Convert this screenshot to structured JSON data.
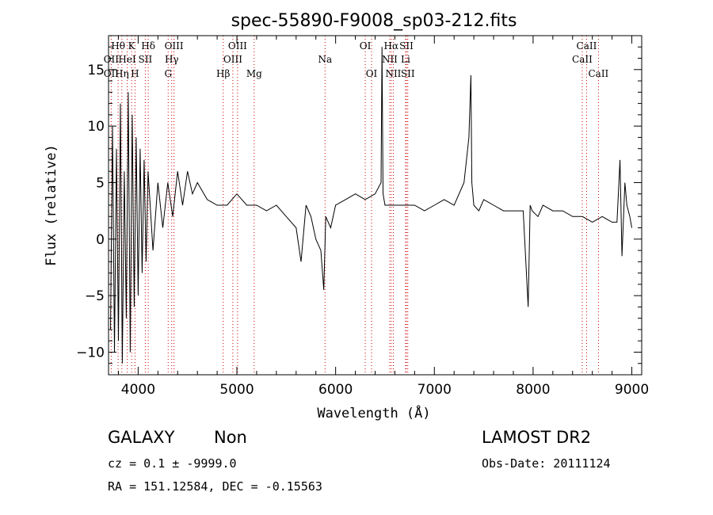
{
  "chart_data": {
    "type": "line",
    "title": "spec-55890-F9008_sp03-212.fits",
    "xlabel": "Wavelength (Å)",
    "ylabel": "Flux (relative)",
    "xlim": [
      3700,
      9100
    ],
    "ylim": [
      -12,
      18
    ],
    "xticks": [
      4000,
      5000,
      6000,
      7000,
      8000,
      9000
    ],
    "yticks": [
      -10,
      -5,
      0,
      5,
      10,
      15
    ],
    "grid": false,
    "colors": {
      "spectrum": "#000000",
      "line_marker": "#cc0000",
      "axes": "#000000"
    },
    "series": [
      {
        "x": [
          3720,
          3740,
          3760,
          3780,
          3800,
          3820,
          3840,
          3860,
          3880,
          3900,
          3920,
          3940,
          3960,
          3980,
          4000,
          4020,
          4040,
          4060,
          4080,
          4100,
          4150,
          4200,
          4250,
          4300,
          4350,
          4400,
          4450,
          4500,
          4550,
          4600,
          4700,
          4800,
          4900,
          5000,
          5100,
          5200,
          5300,
          5400,
          5500,
          5600,
          5650,
          5700,
          5750,
          5800,
          5850,
          5880,
          5900,
          5950,
          6000,
          6100,
          6200,
          6300,
          6400,
          6460,
          6470,
          6480,
          6500,
          6600,
          6700,
          6800,
          6900,
          7000,
          7100,
          7200,
          7300,
          7350,
          7370,
          7380,
          7400,
          7450,
          7500,
          7600,
          7700,
          7800,
          7900,
          7950,
          7970,
          7990,
          8050,
          8100,
          8200,
          8300,
          8400,
          8500,
          8600,
          8700,
          8800,
          8850,
          8880,
          8900,
          8930,
          8950,
          8980,
          9000
        ],
        "y": [
          -8,
          10,
          -10,
          8,
          -9,
          12,
          -11,
          6,
          -7,
          13,
          -10,
          11,
          -6,
          9,
          -5,
          8,
          -3,
          7,
          -2,
          6,
          -1,
          5,
          1,
          5,
          2,
          6,
          3,
          6,
          4,
          5,
          3.5,
          3,
          3,
          4,
          3,
          3,
          2.5,
          3,
          2,
          1,
          -2,
          3,
          2,
          0,
          -1,
          -4.5,
          2,
          1,
          3,
          3.5,
          4,
          3.5,
          4,
          5,
          17,
          4,
          3,
          3,
          3,
          3,
          2.5,
          3,
          3.5,
          3,
          5,
          9,
          14.5,
          5,
          3,
          2.5,
          3.5,
          3,
          2.5,
          2.5,
          2.5,
          -6,
          3,
          2.5,
          2,
          3,
          2.5,
          2.5,
          2,
          2,
          1.5,
          2,
          1.5,
          1.5,
          7,
          -1.5,
          5,
          3,
          2,
          1
        ]
      }
    ],
    "line_labels": [
      {
        "text": "Hθ",
        "x": 3797,
        "row": 1
      },
      {
        "text": "K",
        "x": 3934,
        "row": 1
      },
      {
        "text": "Hδ",
        "x": 4102,
        "row": 1
      },
      {
        "text": "OIII",
        "x": 4363,
        "row": 1
      },
      {
        "text": "OIII",
        "x": 5007,
        "row": 1
      },
      {
        "text": "OI",
        "x": 6300,
        "row": 1
      },
      {
        "text": "Hα",
        "x": 6563,
        "row": 1
      },
      {
        "text": "SII",
        "x": 6717,
        "row": 1
      },
      {
        "text": "CaII",
        "x": 8542,
        "row": 1
      },
      {
        "text": "OII",
        "x": 3727,
        "row": 2
      },
      {
        "text": "HeI",
        "x": 3889,
        "row": 2
      },
      {
        "text": "SII",
        "x": 4072,
        "row": 2
      },
      {
        "text": "Hγ",
        "x": 4340,
        "row": 2
      },
      {
        "text": "OIII",
        "x": 4959,
        "row": 2
      },
      {
        "text": "Na",
        "x": 5893,
        "row": 2
      },
      {
        "text": "NII",
        "x": 6548,
        "row": 2
      },
      {
        "text": "Li",
        "x": 6708,
        "row": 2
      },
      {
        "text": "CaII",
        "x": 8498,
        "row": 2
      },
      {
        "text": "OII",
        "x": 3727,
        "row": 3
      },
      {
        "text": "Hη",
        "x": 3835,
        "row": 3
      },
      {
        "text": "H",
        "x": 3968,
        "row": 3
      },
      {
        "text": "G",
        "x": 4304,
        "row": 3
      },
      {
        "text": "Hβ",
        "x": 4861,
        "row": 3
      },
      {
        "text": "Mg",
        "x": 5175,
        "row": 3
      },
      {
        "text": "OI",
        "x": 6364,
        "row": 3
      },
      {
        "text": "NII",
        "x": 6584,
        "row": 3
      },
      {
        "text": "SII",
        "x": 6731,
        "row": 3
      },
      {
        "text": "CaII",
        "x": 8662,
        "row": 3
      }
    ],
    "marker_lines": [
      3727,
      3797,
      3835,
      3889,
      3934,
      3968,
      4072,
      4102,
      4304,
      4340,
      4363,
      4861,
      4959,
      5007,
      5175,
      5893,
      6300,
      6364,
      6548,
      6563,
      6584,
      6708,
      6717,
      6731,
      8498,
      8542,
      8662
    ]
  },
  "info": {
    "class": "GALAXY",
    "subclass": "Non",
    "survey": "LAMOST DR2",
    "cz": "cz = 0.1 ± -9999.0",
    "obs_date": "Obs-Date: 20111124",
    "radec": "RA = 151.12584, DEC =  -0.15563"
  }
}
